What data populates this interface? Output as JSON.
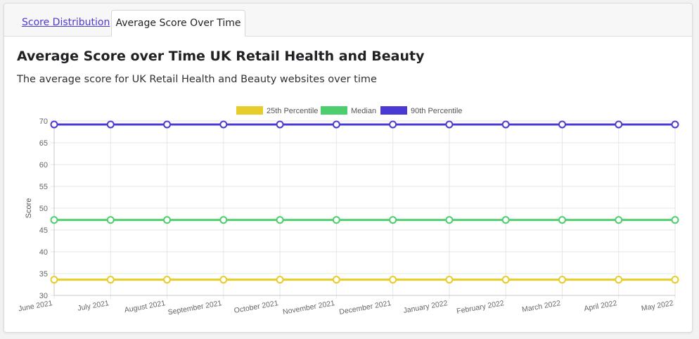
{
  "tabs": [
    {
      "label": "Score Distribution",
      "active": false
    },
    {
      "label": "Average Score Over Time",
      "active": true
    }
  ],
  "panel": {
    "title": "Average Score over Time UK Retail Health and Beauty",
    "subtitle": "The average score for UK Retail Health and Beauty websites over time"
  },
  "colors": {
    "link": "#4b39d6",
    "p25": "#e8cc2a",
    "median": "#4cce6c",
    "p90": "#4b39d6"
  },
  "chart_data": {
    "type": "line",
    "title": "",
    "xlabel": "",
    "ylabel": "Score",
    "ylim": [
      30,
      70
    ],
    "yticks": [
      30,
      35,
      40,
      45,
      50,
      55,
      60,
      65,
      70
    ],
    "grid": true,
    "legend_position": "top",
    "categories": [
      "June 2021",
      "July 2021",
      "August 2021",
      "September 2021",
      "October 2021",
      "November 2021",
      "December 2021",
      "January 2022",
      "February 2022",
      "March 2022",
      "April 2022",
      "May 2022"
    ],
    "series": [
      {
        "name": "25th Percentile",
        "color": "#e8cc2a",
        "values": [
          33.6,
          33.6,
          33.6,
          33.6,
          33.6,
          33.6,
          33.6,
          33.6,
          33.6,
          33.6,
          33.6,
          33.6
        ]
      },
      {
        "name": "Median",
        "color": "#4cce6c",
        "values": [
          47.3,
          47.3,
          47.3,
          47.3,
          47.3,
          47.3,
          47.3,
          47.3,
          47.3,
          47.3,
          47.3,
          47.3
        ]
      },
      {
        "name": "90th Percentile",
        "color": "#4b39d6",
        "values": [
          69.2,
          69.2,
          69.2,
          69.2,
          69.2,
          69.2,
          69.2,
          69.2,
          69.2,
          69.2,
          69.2,
          69.2
        ]
      }
    ]
  }
}
